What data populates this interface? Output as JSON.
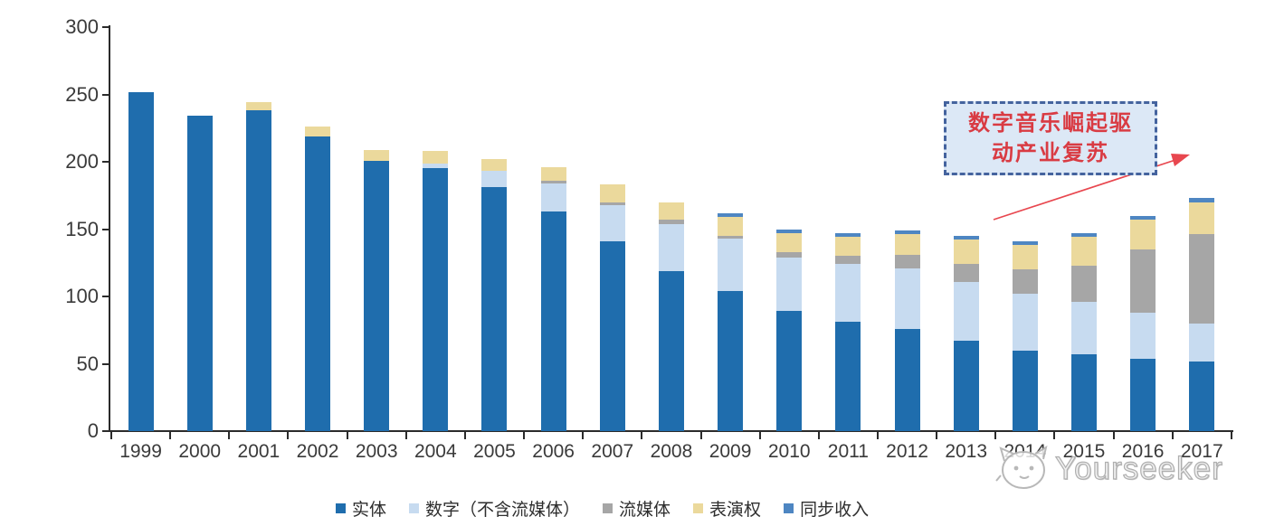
{
  "chart_data": {
    "type": "bar",
    "stacked": true,
    "title": "",
    "xlabel": "",
    "ylabel": "",
    "ylim": [
      0,
      300
    ],
    "ytick_step": 50,
    "yticks": [
      "0",
      "50",
      "100",
      "150",
      "200",
      "250",
      "300"
    ],
    "grid": false,
    "legend_position": "bottom",
    "categories": [
      "1999",
      "2000",
      "2001",
      "2002",
      "2003",
      "2004",
      "2005",
      "2006",
      "2007",
      "2008",
      "2009",
      "2010",
      "2011",
      "2012",
      "2013",
      "2014",
      "2015",
      "2016",
      "2017"
    ],
    "series": [
      {
        "key": "physical",
        "name": "实体",
        "color": "#1f6dad",
        "values": [
          252,
          234,
          238,
          219,
          201,
          195,
          181,
          163,
          141,
          119,
          104,
          89,
          81,
          76,
          67,
          60,
          57,
          54,
          52
        ]
      },
      {
        "key": "digital-excl-streaming",
        "name": "数字（不含流媒体）",
        "color": "#c7dbf0",
        "values": [
          0,
          0,
          0,
          0,
          0,
          4,
          12,
          21,
          27,
          35,
          39,
          40,
          43,
          45,
          44,
          42,
          39,
          34,
          28
        ]
      },
      {
        "key": "streaming",
        "name": "流媒体",
        "color": "#a6a6a6",
        "values": [
          0,
          0,
          0,
          0,
          0,
          0,
          0,
          2,
          2,
          3,
          2,
          4,
          6,
          10,
          13,
          18,
          27,
          47,
          66
        ]
      },
      {
        "key": "performance-rights",
        "name": "表演权",
        "color": "#ebd99c",
        "values": [
          0,
          0,
          6,
          7,
          8,
          9,
          9,
          10,
          13,
          13,
          14,
          14,
          14,
          15,
          18,
          18,
          21,
          22,
          24
        ]
      },
      {
        "key": "sync-revenue",
        "name": "同步收入",
        "color": "#4e86c2",
        "values": [
          0,
          0,
          0,
          0,
          0,
          0,
          0,
          0,
          0,
          0,
          3,
          3,
          3,
          3,
          3,
          3,
          3,
          3,
          3
        ]
      }
    ]
  },
  "annotation": {
    "text_line1": "数字音乐崛起驱",
    "text_line2": "动产业复苏",
    "text_color": "#d93b43",
    "box_fill": "#dce8f6",
    "box_border_color": "#44639e",
    "arrow_color": "#e8474f"
  },
  "watermark": {
    "text": "Yourseeker",
    "logo": "cat-face-sketch-icon",
    "color": "#ababab"
  },
  "axis_color": "#2b2b2b"
}
